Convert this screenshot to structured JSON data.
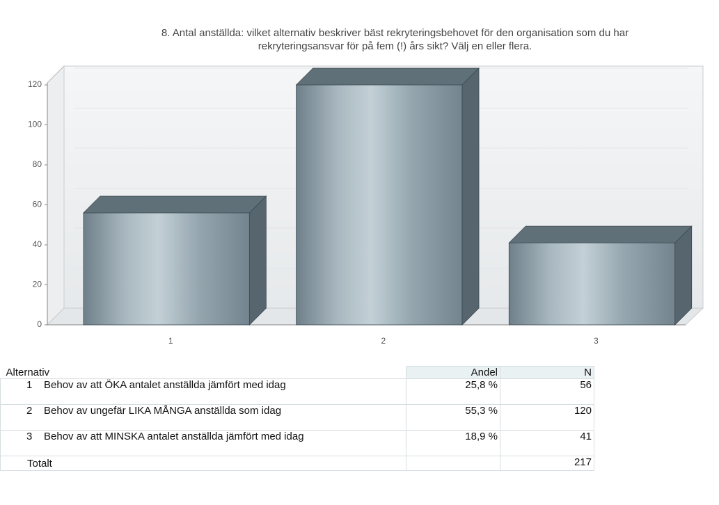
{
  "chart_data": {
    "type": "bar",
    "title": [
      "8. Antal anställda: vilket alternativ beskriver bäst rekryteringsbehovet för den organisation som du har",
      "rekryteringsansvar för på fem (!) års sikt? Välj en eller flera."
    ],
    "categories": [
      "1",
      "2",
      "3"
    ],
    "values": [
      56,
      120,
      41
    ],
    "color": "#8a9ba5",
    "ylim": [
      0,
      120
    ],
    "yticks": [
      0,
      20,
      40,
      60,
      80,
      100,
      120
    ],
    "grid": true
  },
  "table": {
    "header": [
      "Alternativ",
      "Andel",
      "N"
    ],
    "rows": [
      [
        "1",
        "Behov av att ÖKA antalet anställda jämfört med idag",
        "25,8 %",
        56
      ],
      [
        "2",
        "Behov av ungefär LIKA MÅNGA anställda som idag",
        "55,3 %",
        120
      ],
      [
        "3",
        "Behov av att MINSKA antalet anställda jämfört med idag",
        "18,9 %",
        41
      ]
    ],
    "total": {
      "label": "Totalt",
      "n": 217
    }
  }
}
